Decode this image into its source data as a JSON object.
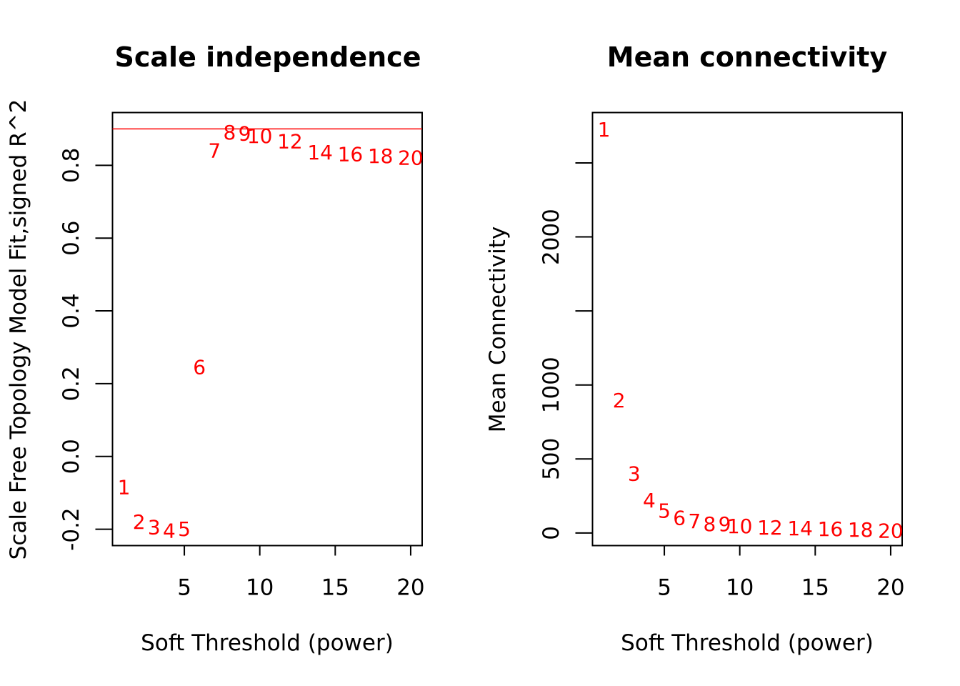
{
  "chart_data": [
    {
      "type": "scatter",
      "title": "Scale independence",
      "xlabel": "Soft Threshold (power)",
      "ylabel": "Scale Free Topology Model Fit,signed R^2",
      "xlim": [
        0.24,
        20.76
      ],
      "ylim": [
        -0.245,
        0.945
      ],
      "x_ticks": [
        5,
        10,
        15,
        20
      ],
      "y_ticks": [
        -0.2,
        0.0,
        0.2,
        0.4,
        0.6,
        0.8
      ],
      "y_tick_labels": [
        "-0.2",
        "0.0",
        "0.2",
        "0.4",
        "0.6",
        "0.8"
      ],
      "marker_color": "#ff0000",
      "hline": {
        "y": 0.9,
        "color": "#ff0000"
      },
      "points": {
        "x": [
          1,
          2,
          3,
          4,
          5,
          6,
          7,
          8,
          9,
          10,
          12,
          14,
          16,
          18,
          20
        ],
        "y": [
          -0.085,
          -0.18,
          -0.195,
          -0.205,
          -0.2,
          0.245,
          0.84,
          0.89,
          0.887,
          0.88,
          0.865,
          0.835,
          0.83,
          0.825,
          0.82
        ],
        "labels": [
          "1",
          "2",
          "3",
          "4",
          "5",
          "6",
          "7",
          "8",
          "9",
          "10",
          "12",
          "14",
          "16",
          "18",
          "20"
        ]
      }
    },
    {
      "type": "scatter",
      "title": "Mean connectivity",
      "xlabel": "Soft Threshold (power)",
      "ylabel": "Mean Connectivity",
      "xlim": [
        0.24,
        20.76
      ],
      "ylim": [
        -85,
        2840
      ],
      "x_ticks": [
        5,
        10,
        15,
        20
      ],
      "y_ticks": [
        0,
        500,
        1000,
        1500,
        2000,
        2500
      ],
      "y_tick_labels": [
        "0",
        "500",
        "1000",
        "",
        "2000",
        ""
      ],
      "marker_color": "#ff0000",
      "points": {
        "x": [
          1,
          2,
          3,
          4,
          5,
          6,
          7,
          8,
          9,
          10,
          12,
          14,
          16,
          18,
          20
        ],
        "y": [
          2725,
          895,
          400,
          220,
          150,
          100,
          80,
          60,
          60,
          45,
          35,
          30,
          25,
          20,
          15
        ],
        "labels": [
          "1",
          "2",
          "3",
          "4",
          "5",
          "6",
          "7",
          "8",
          "9",
          "10",
          "12",
          "14",
          "16",
          "18",
          "20"
        ]
      }
    }
  ]
}
